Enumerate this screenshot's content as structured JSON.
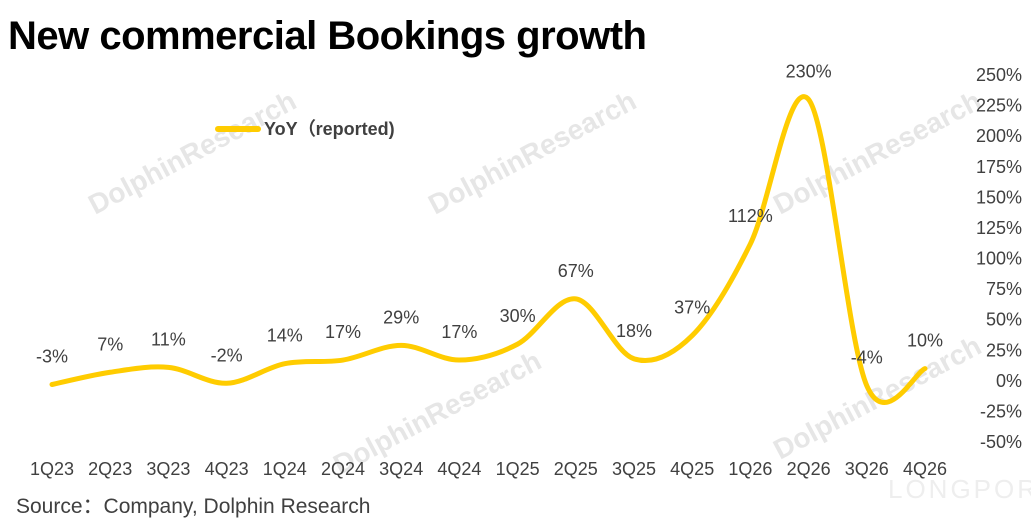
{
  "title": "New commercial Bookings growth",
  "source": "Source：Company, Dolphin Research",
  "watermark": "DolphinResearch",
  "watermark_brand": "LONGPORT",
  "colors": {
    "line": "#FFCC00",
    "text": "#404040",
    "watermark": "#e6e6e6"
  },
  "chart_data": {
    "type": "line",
    "categories": [
      "1Q23",
      "2Q23",
      "3Q23",
      "4Q23",
      "1Q24",
      "2Q24",
      "3Q24",
      "4Q24",
      "1Q25",
      "2Q25",
      "3Q25",
      "4Q25",
      "1Q26",
      "2Q26",
      "3Q26",
      "4Q26"
    ],
    "series": [
      {
        "name": "YoY（reported)",
        "values": [
          -3,
          7,
          11,
          -2,
          14,
          17,
          29,
          17,
          30,
          67,
          18,
          37,
          112,
          230,
          -4,
          10
        ],
        "data_labels": [
          "-3%",
          "7%",
          "11%",
          "-2%",
          "14%",
          "17%",
          "29%",
          "17%",
          "30%",
          "67%",
          "18%",
          "37%",
          "112%",
          "230%",
          "-4%",
          "10%"
        ]
      }
    ],
    "ylim": [
      -50,
      250
    ],
    "yticks": [
      250,
      225,
      200,
      175,
      150,
      125,
      100,
      75,
      50,
      25,
      0,
      -25,
      -50
    ],
    "ytick_labels": [
      "250%",
      "225%",
      "200%",
      "175%",
      "150%",
      "125%",
      "100%",
      "75%",
      "50%",
      "25%",
      "0%",
      "-25%",
      "-50%"
    ],
    "y_axis_position": "right",
    "grid": false,
    "legend_position": "top-left",
    "line_style": "smoothed"
  }
}
